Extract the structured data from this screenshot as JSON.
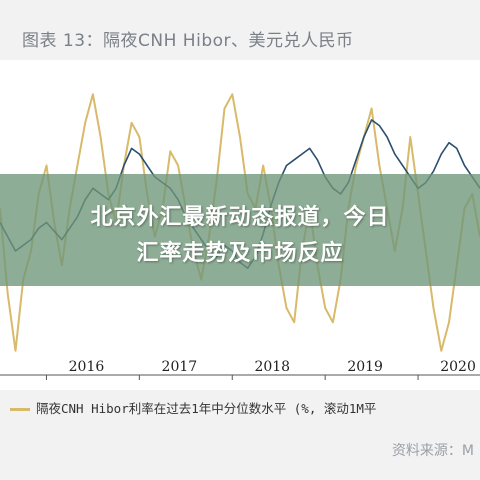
{
  "chart_data": {
    "type": "line",
    "title": "图表 13：隔夜CNH Hibor、美元兑人民币",
    "x_ticks": [
      "2016",
      "2017",
      "2018",
      "2019",
      "2020"
    ],
    "x_range": [
      "2015-07",
      "2020-09"
    ],
    "y_range": [
      0,
      100
    ],
    "grid": false,
    "legend_position": "bottom",
    "legend_entries": [
      "隔夜CNH Hibor利率在过去1年中分位数水平 (%, 滚动1M平"
    ],
    "series": [
      {
        "name": "隔夜CNH Hibor利率在过去1年中分位数水平 (%, 滚动1M平",
        "color": "#d9b96a",
        "x": [
          "2015-07",
          "2015-08",
          "2015-09",
          "2015-10",
          "2015-11",
          "2015-12",
          "2016-01",
          "2016-02",
          "2016-03",
          "2016-04",
          "2016-05",
          "2016-06",
          "2016-07",
          "2016-08",
          "2016-09",
          "2016-10",
          "2016-11",
          "2016-12",
          "2017-01",
          "2017-02",
          "2017-03",
          "2017-04",
          "2017-05",
          "2017-06",
          "2017-07",
          "2017-08",
          "2017-09",
          "2017-10",
          "2017-11",
          "2017-12",
          "2018-01",
          "2018-02",
          "2018-03",
          "2018-04",
          "2018-05",
          "2018-06",
          "2018-07",
          "2018-08",
          "2018-09",
          "2018-10",
          "2018-11",
          "2018-12",
          "2019-01",
          "2019-02",
          "2019-03",
          "2019-04",
          "2019-05",
          "2019-06",
          "2019-07",
          "2019-08",
          "2019-09",
          "2019-10",
          "2019-11",
          "2019-12",
          "2020-01",
          "2020-02",
          "2020-03",
          "2020-04",
          "2020-05",
          "2020-06",
          "2020-07",
          "2020-08",
          "2020-09"
        ],
        "y": [
          55,
          25,
          5,
          30,
          40,
          60,
          70,
          50,
          35,
          55,
          70,
          85,
          95,
          80,
          60,
          50,
          70,
          85,
          80,
          60,
          45,
          55,
          75,
          70,
          55,
          40,
          30,
          45,
          65,
          90,
          95,
          80,
          60,
          55,
          70,
          55,
          35,
          20,
          15,
          40,
          55,
          35,
          20,
          15,
          30,
          55,
          70,
          80,
          90,
          70,
          55,
          40,
          55,
          80,
          60,
          40,
          20,
          5,
          15,
          35,
          55,
          60,
          45
        ]
      },
      {
        "name": "",
        "color": "#2b4f6e",
        "x": [
          "2015-07",
          "2015-08",
          "2015-09",
          "2015-10",
          "2015-11",
          "2015-12",
          "2016-01",
          "2016-02",
          "2016-03",
          "2016-04",
          "2016-05",
          "2016-06",
          "2016-07",
          "2016-08",
          "2016-09",
          "2016-10",
          "2016-11",
          "2016-12",
          "2017-01",
          "2017-02",
          "2017-03",
          "2017-04",
          "2017-05",
          "2017-06",
          "2017-07",
          "2017-08",
          "2017-09",
          "2017-10",
          "2017-11",
          "2017-12",
          "2018-01",
          "2018-02",
          "2018-03",
          "2018-04",
          "2018-05",
          "2018-06",
          "2018-07",
          "2018-08",
          "2018-09",
          "2018-10",
          "2018-11",
          "2018-12",
          "2019-01",
          "2019-02",
          "2019-03",
          "2019-04",
          "2019-05",
          "2019-06",
          "2019-07",
          "2019-08",
          "2019-09",
          "2019-10",
          "2019-11",
          "2019-12",
          "2020-01",
          "2020-02",
          "2020-03",
          "2020-04",
          "2020-05",
          "2020-06",
          "2020-07",
          "2020-08",
          "2020-09"
        ],
        "y": [
          50,
          45,
          40,
          42,
          44,
          48,
          50,
          47,
          44,
          48,
          52,
          58,
          62,
          60,
          58,
          62,
          70,
          76,
          74,
          70,
          66,
          64,
          62,
          58,
          52,
          48,
          44,
          40,
          38,
          42,
          40,
          36,
          34,
          38,
          46,
          56,
          64,
          70,
          72,
          74,
          76,
          72,
          66,
          62,
          60,
          64,
          72,
          80,
          86,
          84,
          80,
          74,
          70,
          66,
          62,
          64,
          68,
          74,
          78,
          76,
          70,
          66,
          62
        ]
      }
    ]
  },
  "banner": {
    "line1": "北京外汇最新动态报道，今日",
    "line2": "汇率走势及市场反应"
  },
  "legend": {
    "text": "隔夜CNH Hibor利率在过去1年中分位数水平 (%, 滚动1M平"
  },
  "source": {
    "text": "资料来源：M"
  }
}
